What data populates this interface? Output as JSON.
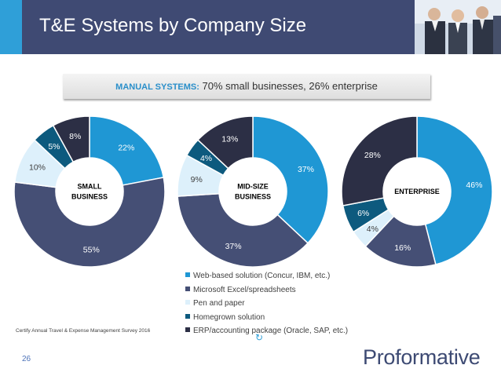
{
  "slide": {
    "title": "T&E Systems by Company Size",
    "page_number": "26",
    "source": "Certify Annual Travel & Expense Management Survey 2016",
    "logo": "Proformative"
  },
  "callout": {
    "label": "MANUAL SYSTEMS:",
    "text": " 70% small businesses, 26% enterprise"
  },
  "colors": {
    "header": "#3f4a73",
    "accent": "#2f9fd8",
    "web": "#1f97d4",
    "excel": "#454f75",
    "paper": "#ddf0fb",
    "homegrown": "#0d5a7e",
    "erp": "#2c2f45"
  },
  "chart_data": [
    {
      "type": "pie",
      "variant": "donut",
      "center_label": [
        "SMALL",
        "BUSINESS"
      ],
      "categories": [
        "Web-based solution (Concur, IBM, etc.)",
        "Microsoft Excel/spreadsheets",
        "Pen and paper",
        "Homegrown solution",
        "ERP/accounting package (Oracle, SAP, etc.)"
      ],
      "values": [
        22,
        55,
        10,
        5,
        8
      ],
      "labels": [
        "22%",
        "55%",
        "10%",
        "5%",
        "8%"
      ]
    },
    {
      "type": "pie",
      "variant": "donut",
      "center_label": [
        "MID-SIZE",
        "BUSINESS"
      ],
      "categories": [
        "Web-based solution (Concur, IBM, etc.)",
        "Microsoft Excel/spreadsheets",
        "Pen and paper",
        "Homegrown solution",
        "ERP/accounting package (Oracle, SAP, etc.)"
      ],
      "values": [
        37,
        37,
        9,
        4,
        13
      ],
      "labels": [
        "37%",
        "37%",
        "9%",
        "4%",
        "13%"
      ]
    },
    {
      "type": "pie",
      "variant": "donut",
      "center_label": [
        "ENTERPRISE"
      ],
      "categories": [
        "Web-based solution (Concur, IBM, etc.)",
        "Microsoft Excel/spreadsheets",
        "Pen and paper",
        "Homegrown solution",
        "ERP/accounting package (Oracle, SAP, etc.)"
      ],
      "values": [
        46,
        16,
        4,
        6,
        28
      ],
      "labels": [
        "46%",
        "16%",
        "4%",
        "6%",
        "28%"
      ]
    }
  ],
  "legend": [
    {
      "label": "Web-based solution (Concur, IBM, etc.)",
      "color": "#1f97d4"
    },
    {
      "label": "Microsoft Excel/spreadsheets",
      "color": "#454f75"
    },
    {
      "label": "Pen and paper",
      "color": "#ddf0fb"
    },
    {
      "label": "Homegrown solution",
      "color": "#0d5a7e"
    },
    {
      "label": "ERP/accounting package (Oracle, SAP, etc.)",
      "color": "#2c2f45"
    }
  ]
}
